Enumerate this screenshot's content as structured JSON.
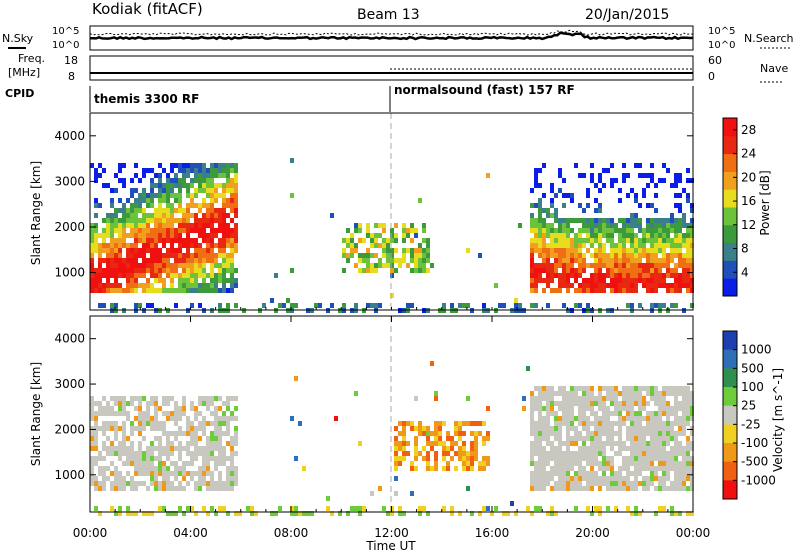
{
  "header": {
    "station": "Kodiak (fitACF)",
    "beam": "Beam 13",
    "date": "20/Jan/2015"
  },
  "strip_panels": {
    "left_label_1": "N.Sky",
    "left_label_2_line1": "Freq.",
    "left_label_2_line2": "[MHz]",
    "left_label_3": "CPID",
    "right_label_1": "N.Search",
    "right_label_2": "Nave",
    "noise_left_ticks": [
      "10^5",
      "10^0"
    ],
    "noise_right_ticks": [
      "10^5",
      "10^0"
    ],
    "freq_left_ticks": [
      "18",
      "8"
    ],
    "nave_right_ticks": [
      "60",
      "0"
    ],
    "cpid_segments": [
      {
        "start": 0,
        "end": 12,
        "label": "themis 3300 RF"
      },
      {
        "start": 12,
        "end": 24,
        "label": "normalsound (fast) 157 RF"
      }
    ]
  },
  "colors": {
    "power_scale": [
      "#0a1ee8",
      "#1f4fb8",
      "#3a7f8a",
      "#3c9a3c",
      "#6cc23a",
      "#e8dc1e",
      "#f0a01e",
      "#f06e14",
      "#e82810",
      "#f01010"
    ],
    "velocity_scale": [
      "#1f3fb0",
      "#2f6fb8",
      "#2f8f4f",
      "#6ccc3a",
      "#c8c8c0",
      "#f0d020",
      "#f09818",
      "#f06010",
      "#f01010"
    ]
  },
  "chart_data": [
    {
      "type": "heatmap",
      "title": "",
      "xlabel": "Time UT",
      "ylabel": "Slant Range [km]",
      "x_ticks": [
        "00:00",
        "04:00",
        "08:00",
        "12:00",
        "16:00",
        "20:00",
        "00:00"
      ],
      "y_ticks": [
        "1000",
        "2000",
        "3000",
        "4000"
      ],
      "xlim": [
        0,
        24
      ],
      "ylim": [
        180,
        4500
      ],
      "colorbar": {
        "label": "Power [dB]",
        "ticks": [
          "4",
          "8",
          "12",
          "16",
          "20",
          "24",
          "28"
        ],
        "range": [
          0,
          30
        ]
      },
      "regions": [
        {
          "t0": 0.0,
          "t1": 5.8,
          "r0": 650,
          "r1": 3500,
          "value": 18,
          "description": "dense early echoes, strongest near 800-1400 km"
        },
        {
          "t0": 10.0,
          "t1": 13.5,
          "r0": 1100,
          "r1": 2100,
          "value": 14,
          "description": "patch near local midnight"
        },
        {
          "t0": 17.5,
          "t1": 24.0,
          "r0": 650,
          "r1": 3500,
          "value": 20,
          "description": "dense late echoes, strongest near 700-1000 km"
        }
      ]
    },
    {
      "type": "heatmap",
      "title": "",
      "xlabel": "Time UT",
      "ylabel": "Slant Range [km]",
      "x_ticks": [
        "00:00",
        "04:00",
        "08:00",
        "12:00",
        "16:00",
        "20:00",
        "00:00"
      ],
      "y_ticks": [
        "1000",
        "2000",
        "3000",
        "4000"
      ],
      "xlim": [
        0,
        24
      ],
      "ylim": [
        180,
        4500
      ],
      "colorbar": {
        "label": "Velocity [m s^-1]",
        "ticks": [
          "1000",
          "500",
          "100",
          "25",
          "-25",
          "-100",
          "-500",
          "-1000"
        ],
        "range": [
          -1000,
          1000
        ]
      },
      "regions": [
        {
          "t0": 0.0,
          "t1": 5.8,
          "r0": 650,
          "r1": 2800,
          "value": 0,
          "description": "ground scatter (grey)"
        },
        {
          "t0": 12.0,
          "t1": 15.8,
          "r0": 1100,
          "r1": 2200,
          "value": -150,
          "description": "orange/yellow negative velocities"
        },
        {
          "t0": 17.5,
          "t1": 24.0,
          "r0": 650,
          "r1": 3000,
          "value": 0,
          "description": "ground scatter (grey) with green patches"
        }
      ]
    }
  ]
}
